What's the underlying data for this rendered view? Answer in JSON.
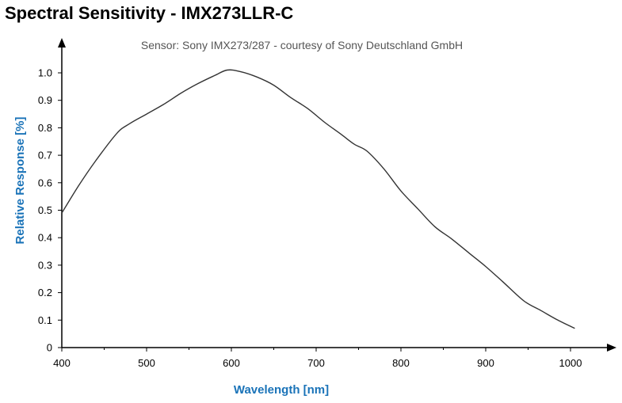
{
  "page": {
    "title": "Spectral Sensitivity - IMX273LLR-C"
  },
  "colors": {
    "axis_title": "#1a73b8",
    "line": "#333333",
    "axis": "#000000"
  },
  "chart_data": {
    "type": "line",
    "subtitle": "Sensor: Sony IMX273/287 - courtesy of Sony Deutschland GmbH",
    "xlabel": "Wavelength [nm]",
    "ylabel": "Relative Response [%]",
    "xlim": [
      400,
      1050
    ],
    "ylim": [
      0,
      1.1
    ],
    "x_ticks": [
      400,
      500,
      600,
      700,
      800,
      900,
      1000
    ],
    "x_tick_labels": [
      "400",
      "500",
      "600",
      "700",
      "800",
      "900",
      "1000"
    ],
    "y_ticks": [
      0,
      0.1,
      0.2,
      0.3,
      0.4,
      0.5,
      0.6,
      0.7,
      0.8,
      0.9,
      1.0
    ],
    "y_tick_labels": [
      "0",
      "0.1",
      "0.2",
      "0.3",
      "0.4",
      "0.5",
      "0.6",
      "0.7",
      "0.8",
      "0.9",
      "1.0"
    ],
    "grid": false,
    "series": [
      {
        "x": [
          400,
          420,
          440,
          465,
          480,
          500,
          520,
          540,
          560,
          580,
          595,
          610,
          630,
          650,
          670,
          690,
          710,
          730,
          745,
          760,
          780,
          800,
          820,
          840,
          860,
          880,
          900,
          920,
          945,
          965,
          985,
          1005
        ],
        "y": [
          0.49,
          0.59,
          0.68,
          0.78,
          0.815,
          0.85,
          0.885,
          0.925,
          0.96,
          0.99,
          1.01,
          1.005,
          0.985,
          0.955,
          0.91,
          0.87,
          0.82,
          0.775,
          0.74,
          0.715,
          0.65,
          0.57,
          0.505,
          0.44,
          0.395,
          0.345,
          0.295,
          0.24,
          0.17,
          0.135,
          0.1,
          0.07
        ]
      }
    ]
  }
}
